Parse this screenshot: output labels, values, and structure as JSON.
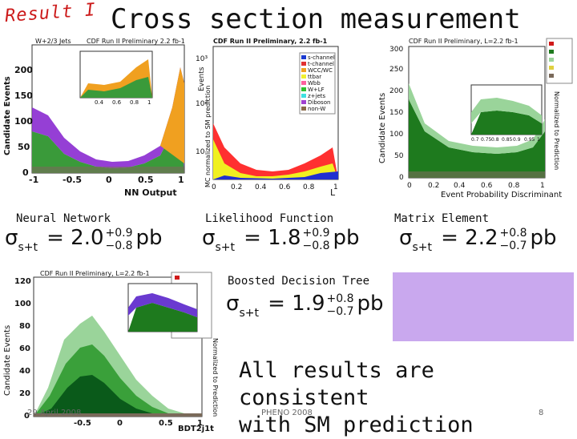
{
  "header": {
    "result_label": "Result I",
    "title": "Cross section measurement"
  },
  "methods": [
    {
      "name": "Neural Network",
      "value": "2.0",
      "up": "+0.9",
      "down": "−0.8",
      "unit": "pb"
    },
    {
      "name": "Likelihood Function",
      "value": "1.8",
      "up": "+0.9",
      "down": "−0.8",
      "unit": "pb"
    },
    {
      "name": "Matrix Element",
      "value": "2.2",
      "up": "+0.8",
      "down": "−0.7",
      "unit": "pb"
    },
    {
      "name": "Boosted Decision Tree",
      "value": "1.9",
      "up": "+0.8",
      "down": "−0.7",
      "unit": "pb"
    }
  ],
  "sigma_symbol": "σ",
  "sigma_sub": "s+t",
  "conclusion": {
    "line1": "All results are consistent",
    "line2": "with SM prediction"
  },
  "footer": {
    "date": "29 April 2008",
    "conference": "PHENO 2008",
    "page": "8"
  },
  "plots": {
    "nn": {
      "header_left": "W+2/3 Jets",
      "header_right": "CDF Run II Preliminary 2.2 fb-1",
      "ylabel": "Candidate Events",
      "xlabel": "NN Output",
      "xticks": [
        "-1",
        "-0.5",
        "0",
        "0.5",
        "1"
      ],
      "yticks": [
        "0",
        "50",
        "100",
        "150",
        "200"
      ],
      "inset_xticks": [
        "0.4",
        "0.6",
        "0.8",
        "1"
      ]
    },
    "lf": {
      "header": "CDF Run II Preliminary, 2.2 fb-1",
      "ylabel": "Events",
      "side_label": "MC normalized to SM prediction",
      "xlabel": "L",
      "xticks": [
        "0",
        "0.2",
        "0.4",
        "0.6",
        "0.8",
        "1"
      ],
      "yticks": [
        "10",
        "10²",
        "10³"
      ],
      "legend": [
        "s-channel",
        "t-channel",
        "WCC/WC",
        "ttbar",
        "Wbb",
        "W+LF",
        "z+jets",
        "Diboson",
        "non-W"
      ]
    },
    "me": {
      "header": "CDF Run II Preliminary, L=2.2 fb-1",
      "ylabel": "Candidate Events",
      "side_label": "Normalized to Prediction",
      "xlabel": "Event Probability Discriminant",
      "xticks": [
        "0",
        "0.2",
        "0.4",
        "0.6",
        "0.8",
        "1"
      ],
      "yticks": [
        "0",
        "50",
        "100",
        "150",
        "200",
        "250",
        "300"
      ],
      "inset_xticks": [
        "0.7",
        "0.75",
        "0.8",
        "0.85",
        "0.9",
        "0.95",
        "1"
      ]
    },
    "bdt": {
      "header": "CDF Run II Preliminary, L=2.2 fb-1",
      "ylabel": "Candidate Events",
      "side_label": "Normalized to Prediction",
      "xlabel": "BDT2j1t",
      "xticks": [
        "-0.5",
        "0",
        "0.5",
        "1"
      ],
      "yticks": [
        "0",
        "20",
        "40",
        "60",
        "80",
        "100",
        "120"
      ]
    }
  },
  "colors": {
    "accent_red": "#cc1a1a",
    "box_violet": "#c9a8ee"
  }
}
